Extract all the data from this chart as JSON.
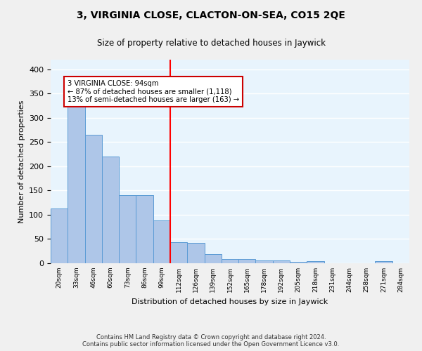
{
  "title": "3, VIRGINIA CLOSE, CLACTON-ON-SEA, CO15 2QE",
  "subtitle": "Size of property relative to detached houses in Jaywick",
  "xlabel": "Distribution of detached houses by size in Jaywick",
  "ylabel": "Number of detached properties",
  "bar_labels": [
    "20sqm",
    "33sqm",
    "46sqm",
    "60sqm",
    "73sqm",
    "86sqm",
    "99sqm",
    "112sqm",
    "126sqm",
    "139sqm",
    "152sqm",
    "165sqm",
    "178sqm",
    "192sqm",
    "205sqm",
    "218sqm",
    "231sqm",
    "244sqm",
    "258sqm",
    "271sqm",
    "284sqm"
  ],
  "bar_values": [
    113,
    325,
    265,
    220,
    141,
    141,
    89,
    44,
    42,
    19,
    8,
    8,
    6,
    6,
    3,
    4,
    0,
    0,
    0,
    5,
    0
  ],
  "bar_color": "#aec6e8",
  "bar_edge_color": "#5b9bd5",
  "red_line_index": 6,
  "annotation_text": "3 VIRGINIA CLOSE: 94sqm\n← 87% of detached houses are smaller (1,118)\n13% of semi-detached houses are larger (163) →",
  "annotation_box_color": "#ffffff",
  "annotation_box_edge": "#cc0000",
  "ylim": [
    0,
    420
  ],
  "background_color": "#ddeeff",
  "plot_bg_color": "#e8f4fd",
  "grid_color": "#ffffff",
  "footer_line1": "Contains HM Land Registry data © Crown copyright and database right 2024.",
  "footer_line2": "Contains public sector information licensed under the Open Government Licence v3.0."
}
